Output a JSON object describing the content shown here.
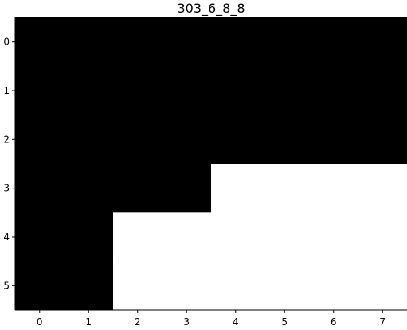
{
  "chart_data": {
    "type": "heatmap",
    "title": "303_6_8_8",
    "xlabel": "",
    "ylabel": "",
    "x_ticks": [
      "0",
      "1",
      "2",
      "3",
      "4",
      "5",
      "6",
      "7"
    ],
    "y_ticks": [
      "0",
      "1",
      "2",
      "3",
      "4",
      "5"
    ],
    "rows": 6,
    "cols": 8,
    "values": [
      [
        0,
        0,
        0,
        0,
        0,
        0,
        0,
        0
      ],
      [
        0,
        0,
        0,
        0,
        0,
        0,
        0,
        0
      ],
      [
        0,
        0,
        0,
        0,
        0,
        0,
        0,
        0
      ],
      [
        0,
        0,
        0,
        0,
        1,
        1,
        1,
        1
      ],
      [
        0,
        0,
        1,
        1,
        1,
        1,
        1,
        1
      ],
      [
        0,
        0,
        1,
        1,
        1,
        1,
        1,
        1
      ]
    ],
    "colormap": {
      "0": "#000000",
      "1": "#ffffff"
    },
    "grid": false,
    "legend": "none"
  }
}
